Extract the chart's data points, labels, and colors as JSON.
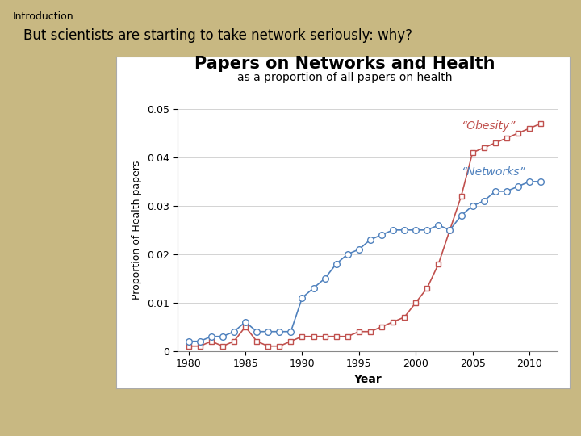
{
  "title": "Papers on Networks and Health",
  "subtitle": "as a proportion of all papers on health",
  "xlabel": "Year",
  "ylabel": "Proportion of Health papers",
  "bg_slide": "#c8b882",
  "bg_plot": "#ffffff",
  "obesity_color": "#c0504d",
  "networks_color": "#4f81bd",
  "years": [
    1980,
    1981,
    1982,
    1983,
    1984,
    1985,
    1986,
    1987,
    1988,
    1989,
    1990,
    1991,
    1992,
    1993,
    1994,
    1995,
    1996,
    1997,
    1998,
    1999,
    2000,
    2001,
    2002,
    2003,
    2004,
    2005,
    2006,
    2007,
    2008,
    2009,
    2010,
    2011
  ],
  "obesity": [
    0.001,
    0.001,
    0.002,
    0.001,
    0.002,
    0.005,
    0.002,
    0.001,
    0.001,
    0.002,
    0.003,
    0.003,
    0.003,
    0.003,
    0.003,
    0.004,
    0.004,
    0.005,
    0.006,
    0.007,
    0.01,
    0.013,
    0.018,
    0.025,
    0.032,
    0.041,
    0.042,
    0.043,
    0.044,
    0.045,
    0.046,
    0.047
  ],
  "networks": [
    0.002,
    0.002,
    0.003,
    0.003,
    0.004,
    0.006,
    0.004,
    0.004,
    0.004,
    0.004,
    0.011,
    0.013,
    0.015,
    0.018,
    0.02,
    0.021,
    0.023,
    0.024,
    0.025,
    0.025,
    0.025,
    0.025,
    0.026,
    0.025,
    0.028,
    0.03,
    0.031,
    0.033,
    0.033,
    0.034,
    0.035,
    0.035
  ],
  "ylim": [
    0,
    0.05
  ],
  "yticks": [
    0,
    0.01,
    0.02,
    0.03,
    0.04,
    0.05
  ],
  "ytick_labels": [
    "0",
    "0.01",
    "0.02",
    "0.03",
    "0.04",
    "0.05"
  ],
  "xticks": [
    1980,
    1985,
    1990,
    1995,
    2000,
    2005,
    2010
  ],
  "obesity_label": "“Obesity”",
  "networks_label": "“Networks”",
  "slide_title": "Introduction",
  "slide_subtitle": "But scientists are starting to take network seriously: why?",
  "title_fontsize": 15,
  "subtitle_fontsize": 10,
  "axis_label_fontsize": 9,
  "tick_fontsize": 9,
  "annotation_fontsize": 10
}
